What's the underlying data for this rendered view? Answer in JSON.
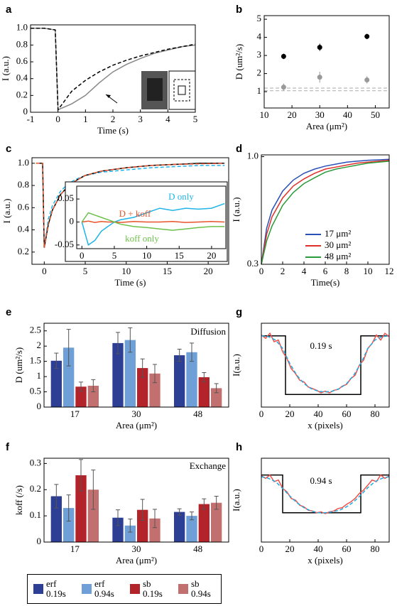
{
  "chart_data": [
    {
      "type": "line",
      "panel": "a",
      "xlabel": "Time (s)",
      "ylabel": "I (a.u.)",
      "xlim": [
        -1,
        5
      ],
      "xticks": [
        -1,
        0,
        1,
        2,
        3,
        4,
        5
      ],
      "ylim": [
        0,
        1.04
      ],
      "yticks": [
        0,
        0.2,
        0.4,
        0.6,
        0.8,
        {
          "value": 1,
          "label": "1.0"
        }
      ],
      "series": [
        {
          "color": "#888888",
          "style": "solid",
          "x": [
            -1,
            -0.5,
            -0.1,
            0,
            0.5,
            1,
            1.5,
            2,
            2.5,
            3,
            3.5,
            4,
            4.5,
            5
          ],
          "values": [
            1,
            1,
            0.98,
            0.03,
            0.1,
            0.2,
            0.35,
            0.48,
            0.57,
            0.64,
            0.7,
            0.74,
            0.78,
            0.8
          ]
        },
        {
          "color": "#000000",
          "style": "dashed",
          "x": [
            -1,
            -0.5,
            -0.1,
            0,
            0.5,
            1,
            1.5,
            2,
            2.5,
            3,
            3.5,
            4,
            4.5,
            5
          ],
          "values": [
            1,
            1,
            0.98,
            0.03,
            0.25,
            0.38,
            0.48,
            0.56,
            0.62,
            0.67,
            0.71,
            0.75,
            0.78,
            0.81
          ]
        }
      ]
    },
    {
      "type": "scatter",
      "panel": "b",
      "xlabel": "Area (μm²)",
      "ylabel": "D (um²/s)",
      "xlim": [
        10,
        55
      ],
      "xticks": [
        10,
        20,
        30,
        40,
        50
      ],
      "ylim": [
        0.1,
        5.2
      ],
      "yticks": [
        1,
        2,
        3,
        4,
        5
      ],
      "x": [
        17,
        30,
        47
      ],
      "hlines": [
        1.05,
        1.2
      ],
      "series": [
        {
          "color": "#000000",
          "values": [
            2.95,
            3.45,
            4.05
          ],
          "errors": [
            0.15,
            0.2,
            0.15
          ]
        },
        {
          "color": "#999999",
          "values": [
            1.25,
            1.8,
            1.65
          ],
          "errors": [
            0.2,
            0.3,
            0.2
          ]
        }
      ]
    },
    {
      "type": "line",
      "panel": "c",
      "xlabel": "Time (s)",
      "ylabel": "I (a.u.)",
      "xlim": [
        -1.5,
        22.5
      ],
      "xticks": [
        0,
        5,
        10,
        15,
        20
      ],
      "ylim": [
        0.09,
        1.05
      ],
      "yticks": [
        0.2,
        0.4,
        0.6,
        0.8,
        {
          "value": 1,
          "label": "1.0"
        }
      ],
      "series": [
        {
          "color": "#1fb4e8",
          "style": "dashed",
          "x": [
            -1,
            -0.2,
            0,
            0.5,
            1,
            2,
            3,
            4,
            5,
            7,
            10,
            13,
            16,
            19,
            22
          ],
          "values": [
            1,
            1,
            0.24,
            0.5,
            0.62,
            0.75,
            0.82,
            0.86,
            0.89,
            0.92,
            0.94,
            0.96,
            0.97,
            0.98,
            0.98
          ]
        },
        {
          "color": "#000000",
          "style": "solid",
          "x": [
            -1,
            -0.2,
            0,
            0.5,
            1,
            2,
            3,
            4,
            5,
            7,
            10,
            13,
            16,
            19,
            22
          ],
          "values": [
            1,
            1,
            0.24,
            0.45,
            0.58,
            0.72,
            0.8,
            0.85,
            0.89,
            0.93,
            0.96,
            0.98,
            0.99,
            1.0,
            1.0
          ]
        },
        {
          "color": "#e8532b",
          "style": "dashed",
          "x": [
            -1,
            -0.2,
            0,
            0.5,
            1,
            2,
            3,
            4,
            5,
            7,
            10,
            13,
            16,
            19,
            22
          ],
          "values": [
            1,
            1,
            0.24,
            0.46,
            0.58,
            0.72,
            0.8,
            0.85,
            0.89,
            0.93,
            0.96,
            0.98,
            0.99,
            0.995,
            1.0
          ]
        }
      ]
    },
    {
      "type": "line",
      "xlim": [
        -0.8,
        22.2
      ],
      "xticks": [
        0,
        5,
        10,
        15,
        20
      ],
      "ylim": [
        -0.058,
        0.078
      ],
      "yticks": [
        -0.05,
        0,
        0.05
      ],
      "series": [
        {
          "name": "D only",
          "color": "#1fb4e8",
          "style": "solid",
          "x": [
            0,
            1,
            2,
            3,
            4,
            5,
            6,
            8,
            10,
            12,
            14,
            16,
            18,
            20,
            22
          ],
          "values": [
            0,
            -0.05,
            -0.04,
            -0.02,
            -0.01,
            0,
            0.005,
            0.01,
            0.02,
            0.03,
            0.025,
            0.03,
            0.028,
            0.03,
            0.04
          ]
        },
        {
          "name": "D + koff",
          "color": "#e8532b",
          "style": "solid",
          "x": [
            0,
            1,
            2,
            3,
            4,
            5,
            6,
            8,
            10,
            12,
            14,
            16,
            18,
            20,
            22
          ],
          "values": [
            0,
            0.002,
            -0.001,
            0.001,
            0,
            0,
            -0.001,
            0.001,
            0,
            0,
            0.001,
            -0.001,
            0,
            0.001,
            0
          ]
        },
        {
          "name": "koff only",
          "color": "#6cc04a",
          "style": "solid",
          "x": [
            0,
            1,
            2,
            3,
            4,
            5,
            6,
            8,
            10,
            12,
            14,
            16,
            18,
            20,
            22
          ],
          "values": [
            0,
            0.02,
            0.015,
            0.01,
            0.005,
            0,
            -0.005,
            -0.01,
            -0.012,
            -0.015,
            -0.018,
            -0.015,
            -0.012,
            -0.01,
            -0.01
          ]
        }
      ]
    },
    {
      "type": "line",
      "panel": "d",
      "xlabel": "Time(s)",
      "ylabel": "I (a.u.)",
      "ylog": true,
      "legend": "lower right",
      "xlim": [
        0,
        12
      ],
      "xticks": [
        0,
        2,
        4,
        6,
        8,
        10,
        12
      ],
      "ylim": [
        0.3,
        1.02
      ],
      "yticks": [
        0.3,
        {
          "value": 1,
          "label": "1.0"
        }
      ],
      "series": [
        {
          "name": "17 μm²",
          "color": "#2b4fb8",
          "style": "solid",
          "x": [
            0,
            0.5,
            1,
            2,
            3,
            4,
            5,
            6,
            7,
            8,
            9,
            10,
            11,
            12
          ],
          "values": [
            0.3,
            0.45,
            0.55,
            0.68,
            0.77,
            0.83,
            0.87,
            0.9,
            0.92,
            0.94,
            0.95,
            0.96,
            0.965,
            0.97
          ]
        },
        {
          "name": "30 μm²",
          "color": "#e0302a",
          "style": "solid",
          "x": [
            0,
            0.5,
            1,
            2,
            3,
            4,
            5,
            6,
            7,
            8,
            9,
            10,
            11,
            12
          ],
          "values": [
            0.3,
            0.42,
            0.51,
            0.63,
            0.72,
            0.78,
            0.83,
            0.87,
            0.89,
            0.91,
            0.93,
            0.94,
            0.95,
            0.96
          ]
        },
        {
          "name": "48 μm²",
          "color": "#2a9a3a",
          "style": "solid",
          "x": [
            0,
            0.5,
            1,
            2,
            3,
            4,
            5,
            6,
            7,
            8,
            9,
            10,
            11,
            12
          ],
          "values": [
            0.3,
            0.39,
            0.46,
            0.58,
            0.67,
            0.74,
            0.79,
            0.84,
            0.87,
            0.89,
            0.91,
            0.93,
            0.94,
            0.95
          ]
        }
      ]
    },
    {
      "type": "bar",
      "panel": "e",
      "annotation": "Diffusion",
      "xlabel": "Area (μm²)",
      "ylabel": "D (um²/s)",
      "categories": [
        "17",
        "30",
        "48"
      ],
      "ylim": [
        0,
        2.75
      ],
      "yticks": [
        0,
        0.5,
        1,
        1.5,
        2,
        2.5
      ],
      "series": [
        {
          "name": "erf 0.19s",
          "color": "#2d3f94",
          "values": [
            1.52,
            2.1,
            1.7
          ],
          "errors": [
            0.25,
            0.35,
            0.2
          ]
        },
        {
          "name": "erf 0.94s",
          "color": "#6e9fd6",
          "values": [
            1.95,
            2.2,
            1.8
          ],
          "errors": [
            0.6,
            0.4,
            0.3
          ]
        },
        {
          "name": "sb 0.19s",
          "color": "#b3232a",
          "values": [
            0.67,
            1.28,
            0.98
          ],
          "errors": [
            0.15,
            0.3,
            0.15
          ]
        },
        {
          "name": "sb 0.94s",
          "color": "#c2706f",
          "values": [
            0.7,
            1.1,
            0.62
          ],
          "errors": [
            0.2,
            0.3,
            0.15
          ]
        }
      ]
    },
    {
      "type": "bar",
      "panel": "f",
      "annotation": "Exchange",
      "xlabel": "Area (μm²)",
      "ylabel": "koff (/s)",
      "categories": [
        "17",
        "30",
        "48"
      ],
      "ylim": [
        0,
        0.32
      ],
      "yticks": [
        0,
        0.1,
        0.2,
        0.3
      ],
      "series": [
        {
          "color": "#2d3f94",
          "values": [
            0.175,
            0.093,
            0.115
          ],
          "errors": [
            0.045,
            0.03,
            0.012
          ]
        },
        {
          "color": "#6e9fd6",
          "values": [
            0.13,
            0.063,
            0.1
          ],
          "errors": [
            0.05,
            0.025,
            0.015
          ]
        },
        {
          "color": "#b3232a",
          "values": [
            0.255,
            0.123,
            0.145
          ],
          "errors": [
            0.06,
            0.04,
            0.02
          ]
        },
        {
          "color": "#c2706f",
          "values": [
            0.2,
            0.09,
            0.15
          ],
          "errors": [
            0.075,
            0.035,
            0.025
          ]
        }
      ]
    },
    {
      "type": "line",
      "panel": "g",
      "annotation": "0.19 s",
      "xlabel": "x (pixels)",
      "ylabel": "I(a.u.)",
      "xlim": [
        0,
        90
      ],
      "xticks": [
        0,
        20,
        40,
        60,
        80
      ],
      "ylim": [
        0,
        1
      ],
      "yticks": [],
      "series": [
        {
          "color": "#000000",
          "style": "solid",
          "x": [
            0,
            17,
            17,
            70,
            70,
            90
          ],
          "values": [
            0.85,
            0.85,
            0.15,
            0.15,
            0.85,
            0.85
          ]
        },
        {
          "color": "#f0504a",
          "style": "solid",
          "x": [
            0,
            3,
            6,
            9,
            12,
            15,
            18,
            21,
            24,
            27,
            30,
            33,
            36,
            39,
            42,
            45,
            48,
            51,
            54,
            57,
            60,
            63,
            66,
            69,
            72,
            75,
            78,
            81,
            84,
            87,
            90
          ],
          "values": [
            0.86,
            0.82,
            0.88,
            0.78,
            0.8,
            0.66,
            0.58,
            0.46,
            0.4,
            0.32,
            0.3,
            0.24,
            0.22,
            0.2,
            0.17,
            0.19,
            0.17,
            0.2,
            0.21,
            0.25,
            0.27,
            0.34,
            0.38,
            0.5,
            0.56,
            0.7,
            0.76,
            0.86,
            0.8,
            0.88,
            0.84
          ]
        },
        {
          "color": "#1fa9e0",
          "style": "dashed",
          "x": [
            0,
            5,
            10,
            15,
            20,
            25,
            30,
            35,
            40,
            45,
            50,
            55,
            60,
            65,
            70,
            75,
            80,
            85,
            90
          ],
          "values": [
            0.85,
            0.84,
            0.8,
            0.7,
            0.52,
            0.38,
            0.28,
            0.22,
            0.19,
            0.18,
            0.19,
            0.22,
            0.28,
            0.38,
            0.52,
            0.7,
            0.8,
            0.84,
            0.85
          ]
        }
      ]
    },
    {
      "type": "line",
      "panel": "h",
      "annotation": "0.94 s",
      "xlabel": "x (pixels)",
      "ylabel": "I(a.u.)",
      "xlim": [
        0,
        90
      ],
      "xticks": [
        0,
        20,
        40,
        60,
        80
      ],
      "ylim": [
        0,
        1
      ],
      "yticks": [],
      "series": [
        {
          "color": "#000000",
          "style": "solid",
          "x": [
            0,
            15,
            15,
            70,
            70,
            90
          ],
          "values": [
            0.8,
            0.8,
            0.35,
            0.35,
            0.8,
            0.8
          ]
        },
        {
          "color": "#f0504a",
          "style": "solid",
          "x": [
            0,
            3,
            6,
            9,
            12,
            15,
            18,
            21,
            24,
            27,
            30,
            33,
            36,
            39,
            42,
            45,
            48,
            51,
            54,
            57,
            60,
            63,
            66,
            69,
            72,
            75,
            78,
            81,
            84,
            87,
            90
          ],
          "values": [
            0.79,
            0.76,
            0.8,
            0.72,
            0.74,
            0.64,
            0.6,
            0.52,
            0.5,
            0.44,
            0.42,
            0.38,
            0.37,
            0.35,
            0.36,
            0.34,
            0.36,
            0.37,
            0.4,
            0.41,
            0.45,
            0.48,
            0.52,
            0.58,
            0.62,
            0.68,
            0.74,
            0.72,
            0.8,
            0.76,
            0.79
          ]
        },
        {
          "color": "#1fa9e0",
          "style": "dashed",
          "x": [
            0,
            5,
            10,
            15,
            20,
            25,
            30,
            35,
            40,
            45,
            50,
            55,
            60,
            65,
            70,
            75,
            80,
            85,
            90
          ],
          "values": [
            0.78,
            0.76,
            0.72,
            0.64,
            0.55,
            0.47,
            0.41,
            0.37,
            0.35,
            0.35,
            0.36,
            0.38,
            0.42,
            0.48,
            0.56,
            0.65,
            0.72,
            0.76,
            0.78
          ]
        }
      ]
    }
  ]
}
